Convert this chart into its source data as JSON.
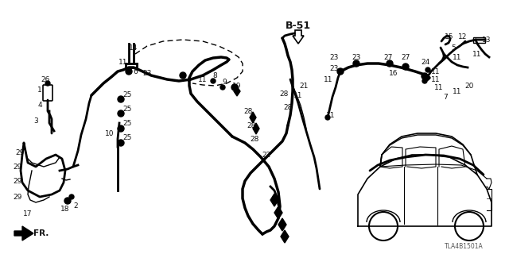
{
  "bg_color": "#ffffff",
  "line_color": "#000000",
  "diagram_code": "TLA4B1501A",
  "section_ref": "B-51",
  "text_color": "#111111",
  "figsize": [
    6.4,
    3.2
  ],
  "dpi": 100
}
